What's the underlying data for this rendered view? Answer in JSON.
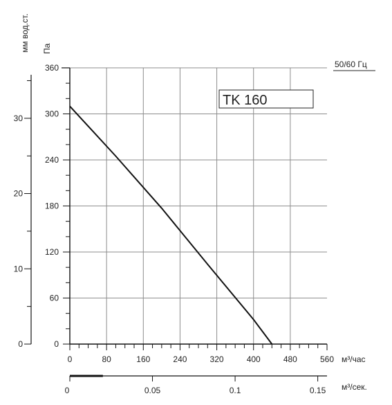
{
  "chart_data": {
    "type": "line",
    "title": "TK 160",
    "frequency_label": "50/60 Гц",
    "x_axis": {
      "label": "м³/час",
      "range": [
        0,
        560
      ],
      "ticks": [
        "0",
        "80",
        "160",
        "240",
        "320",
        "400",
        "480",
        "560"
      ]
    },
    "x2_axis": {
      "label": "м³/сек.",
      "range": [
        0,
        0.1556
      ],
      "ticks": [
        "0",
        "0.05",
        "0.1",
        "0.15"
      ]
    },
    "y_axis": {
      "label": "Па",
      "range": [
        0,
        360
      ],
      "ticks": [
        "0",
        "60",
        "120",
        "180",
        "240",
        "300",
        "360"
      ]
    },
    "y2_axis": {
      "label": "мм вод.ст.",
      "range": [
        0,
        36.7
      ],
      "ticks": [
        "0",
        "10",
        "20",
        "30"
      ]
    },
    "grid": true,
    "series": [
      {
        "x": [
          0,
          100,
          200,
          300,
          400,
          440
        ],
        "y": [
          310,
          245,
          177,
          104,
          32,
          0
        ],
        "color": "#111111"
      }
    ]
  }
}
